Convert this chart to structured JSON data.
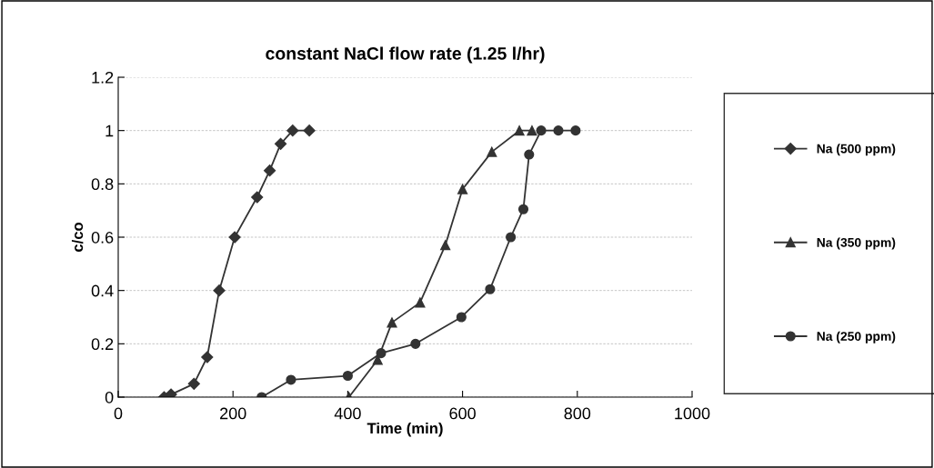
{
  "chart_data": {
    "type": "line",
    "title": "constant NaCl flow rate (1.25 l/hr)",
    "xlabel": "Time (min)",
    "ylabel": "c/co",
    "xlim": [
      0,
      1000
    ],
    "xticks": [
      0,
      200,
      400,
      600,
      800,
      1000
    ],
    "ylim": [
      0,
      1.2
    ],
    "yticks": [
      0,
      0.2,
      0.4,
      0.6,
      0.8,
      1,
      1.2
    ],
    "grid": "y",
    "legend": "right",
    "line_style": "solid",
    "series": [
      {
        "name": "Na (500 ppm)",
        "color": "#333333",
        "marker": "diamond",
        "x": [
          80,
          92,
          132,
          155,
          176,
          203,
          242,
          264,
          283,
          304,
          333
        ],
        "values": [
          0,
          0.01,
          0.05,
          0.15,
          0.4,
          0.6,
          0.75,
          0.85,
          0.95,
          1,
          1
        ]
      },
      {
        "name": "Na (350 ppm)",
        "color": "#333333",
        "marker": "triangle",
        "x": [
          402,
          452,
          477,
          526,
          570,
          600,
          651,
          699,
          721
        ],
        "values": [
          0,
          0.14,
          0.28,
          0.355,
          0.57,
          0.78,
          0.92,
          1,
          1
        ]
      },
      {
        "name": "Na (250 ppm)",
        "color": "#333333",
        "marker": "circle",
        "x": [
          250,
          301,
          400,
          458,
          518,
          598,
          648,
          684,
          706,
          716,
          737,
          767,
          797
        ],
        "values": [
          0,
          0.065,
          0.08,
          0.165,
          0.2,
          0.3,
          0.405,
          0.6,
          0.705,
          0.91,
          1,
          1,
          1
        ]
      }
    ]
  }
}
